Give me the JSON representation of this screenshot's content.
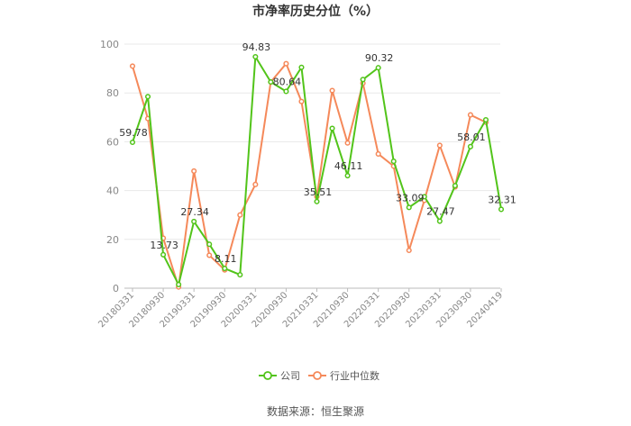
{
  "chart_data": {
    "type": "line",
    "title": "市净率历史分位（%）",
    "xlabel": "",
    "ylabel": "",
    "ylim": [
      0,
      100
    ],
    "yticks": [
      0,
      20,
      40,
      60,
      80,
      100
    ],
    "grid": true,
    "legend_position": "bottom-center",
    "x": [
      "20180331",
      "20180630",
      "20180930",
      "20181231",
      "20190331",
      "20190630",
      "20190930",
      "20191231",
      "20200331",
      "20200630",
      "20200930",
      "20201231",
      "20210331",
      "20210630",
      "20210930",
      "20211231",
      "20220331",
      "20220630",
      "20220930",
      "20221231",
      "20230331",
      "20230630",
      "20230930",
      "20231231",
      "20240419"
    ],
    "x_tick_labels": [
      "20180331",
      "20180930",
      "20190331",
      "20190930",
      "20200331",
      "20200930",
      "20210331",
      "20210930",
      "20220331",
      "20220930",
      "20230331",
      "20230930",
      "20240419"
    ],
    "series": [
      {
        "name": "公司",
        "color": "#52c41a",
        "values": [
          59.78,
          78.5,
          13.73,
          1.5,
          27.34,
          18.0,
          8.11,
          5.5,
          94.83,
          84.5,
          80.64,
          90.5,
          35.51,
          65.5,
          46.11,
          85.5,
          90.32,
          52.0,
          33.09,
          37.5,
          27.47,
          42.0,
          58.01,
          69.0,
          32.31
        ],
        "labels": {
          "0": "59.78",
          "2": "13.73",
          "4": "27.34",
          "6": "8.11",
          "8": "94.83",
          "10": "80.64",
          "12": "35.51",
          "14": "46.11",
          "16": "90.32",
          "18": "33.09",
          "20": "27.47",
          "22": "58.01",
          "24": "32.31"
        }
      },
      {
        "name": "行业中位数",
        "color": "#f5895a",
        "values": [
          91.0,
          69.5,
          20.5,
          0.5,
          48.0,
          13.5,
          7.5,
          30.0,
          42.5,
          84.5,
          92.0,
          76.5,
          37.5,
          81.0,
          59.5,
          84.0,
          55.0,
          50.0,
          15.5,
          36.0,
          58.5,
          41.5,
          71.0,
          68.0,
          null
        ]
      }
    ]
  },
  "legend": [
    {
      "label": "公司",
      "color": "#52c41a"
    },
    {
      "label": "行业中位数",
      "color": "#f5895a"
    }
  ],
  "source_text": "数据来源：恒生聚源"
}
